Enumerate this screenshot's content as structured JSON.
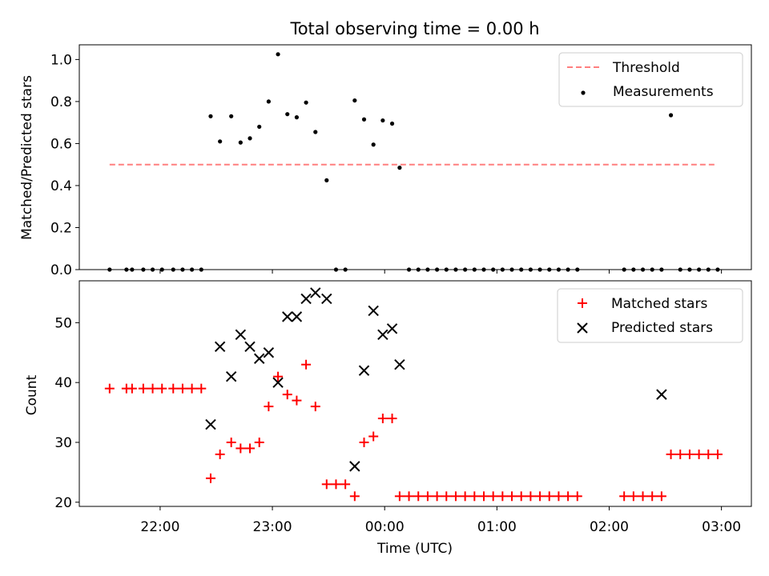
{
  "chart_data": [
    {
      "type": "line",
      "title": "Total observing time = 0.00 h",
      "ylabel": "Matched/Predicted stars",
      "xlabel": "",
      "ylim": [
        0,
        1.07
      ],
      "yticks": [
        "0.0",
        "0.2",
        "0.4",
        "0.6",
        "0.8",
        "1.0"
      ],
      "grid": false,
      "legend_position": "top-right",
      "series": [
        {
          "name": "Threshold",
          "style": "dashed-line",
          "color": "#ff7f7f",
          "x": [
            "21:33",
            "02:57"
          ],
          "y": [
            0.5,
            0.5
          ]
        },
        {
          "name": "Measurements",
          "style": "dots",
          "color": "#000000",
          "x": [
            "21:33",
            "21:42",
            "21:45",
            "21:51",
            "21:56",
            "22:01",
            "22:07",
            "22:12",
            "22:17",
            "22:22",
            "22:27",
            "22:32",
            "22:38",
            "22:43",
            "22:48",
            "22:53",
            "22:58",
            "23:03",
            "23:08",
            "23:13",
            "23:18",
            "23:23",
            "23:29",
            "23:34",
            "23:39",
            "23:44",
            "23:49",
            "23:54",
            "23:59",
            "00:04",
            "00:08",
            "00:13",
            "00:18",
            "00:23",
            "00:28",
            "00:33",
            "00:38",
            "00:43",
            "00:48",
            "00:53",
            "00:58",
            "01:03",
            "01:08",
            "01:13",
            "01:18",
            "01:23",
            "01:28",
            "01:33",
            "01:38",
            "01:43",
            "02:08",
            "02:13",
            "02:18",
            "02:23",
            "02:28",
            "02:33",
            "02:38",
            "02:43",
            "02:48",
            "02:53",
            "02:58"
          ],
          "y": [
            0,
            0,
            0,
            0,
            0,
            0,
            0,
            0,
            0,
            0,
            0.73,
            0.61,
            0.73,
            0.605,
            0.625,
            0.68,
            0.8,
            1.025,
            0.74,
            0.725,
            0.795,
            0.655,
            0.425,
            0,
            0,
            0.805,
            0.715,
            0.595,
            0.71,
            0.695,
            0.485,
            0,
            0,
            0,
            0,
            0,
            0,
            0,
            0,
            0,
            0,
            0,
            0,
            0,
            0,
            0,
            0,
            0,
            0,
            0,
            0,
            0,
            0,
            0,
            0,
            0.735,
            0,
            0,
            0,
            0,
            0
          ]
        }
      ]
    },
    {
      "type": "scatter",
      "title": "",
      "ylabel": "Count",
      "xlabel": "Time (UTC)",
      "ylim": [
        19.3,
        57
      ],
      "yticks": [
        "20",
        "30",
        "40",
        "50"
      ],
      "xticks": [
        "22:00",
        "23:00",
        "00:00",
        "01:00",
        "02:00",
        "03:00"
      ],
      "grid": false,
      "legend_position": "top-right",
      "series": [
        {
          "name": "Matched stars",
          "marker": "plus",
          "color": "#ff0000",
          "x": [
            "21:33",
            "21:42",
            "21:45",
            "21:51",
            "21:56",
            "22:01",
            "22:07",
            "22:12",
            "22:17",
            "22:22",
            "22:27",
            "22:32",
            "22:38",
            "22:43",
            "22:48",
            "22:53",
            "22:58",
            "23:03",
            "23:08",
            "23:13",
            "23:18",
            "23:23",
            "23:29",
            "23:34",
            "23:39",
            "23:44",
            "23:49",
            "23:54",
            "23:59",
            "00:04",
            "00:08",
            "00:13",
            "00:18",
            "00:23",
            "00:28",
            "00:33",
            "00:38",
            "00:43",
            "00:48",
            "00:53",
            "00:58",
            "01:03",
            "01:08",
            "01:13",
            "01:18",
            "01:23",
            "01:28",
            "01:33",
            "01:38",
            "01:43",
            "02:08",
            "02:13",
            "02:18",
            "02:23",
            "02:28",
            "02:33",
            "02:38",
            "02:43",
            "02:48",
            "02:53",
            "02:58"
          ],
          "y": [
            39,
            39,
            39,
            39,
            39,
            39,
            39,
            39,
            39,
            39,
            24,
            28,
            30,
            29,
            29,
            30,
            36,
            41,
            38,
            37,
            43,
            36,
            23,
            23,
            23,
            21,
            30,
            31,
            34,
            34,
            21,
            21,
            21,
            21,
            21,
            21,
            21,
            21,
            21,
            21,
            21,
            21,
            21,
            21,
            21,
            21,
            21,
            21,
            21,
            21,
            21,
            21,
            21,
            21,
            21,
            28,
            28,
            28,
            28,
            28,
            28
          ]
        },
        {
          "name": "Predicted stars",
          "marker": "x",
          "color": "#000000",
          "x": [
            "22:27",
            "22:32",
            "22:38",
            "22:43",
            "22:48",
            "22:53",
            "22:58",
            "23:03",
            "23:08",
            "23:13",
            "23:18",
            "23:23",
            "23:29",
            "23:44",
            "23:49",
            "23:54",
            "23:59",
            "00:04",
            "00:08",
            "02:28"
          ],
          "y": [
            33,
            46,
            41,
            48,
            46,
            44,
            45,
            40,
            51,
            51,
            54,
            55,
            54,
            26,
            42,
            52,
            48,
            49,
            43,
            38
          ]
        }
      ]
    }
  ]
}
